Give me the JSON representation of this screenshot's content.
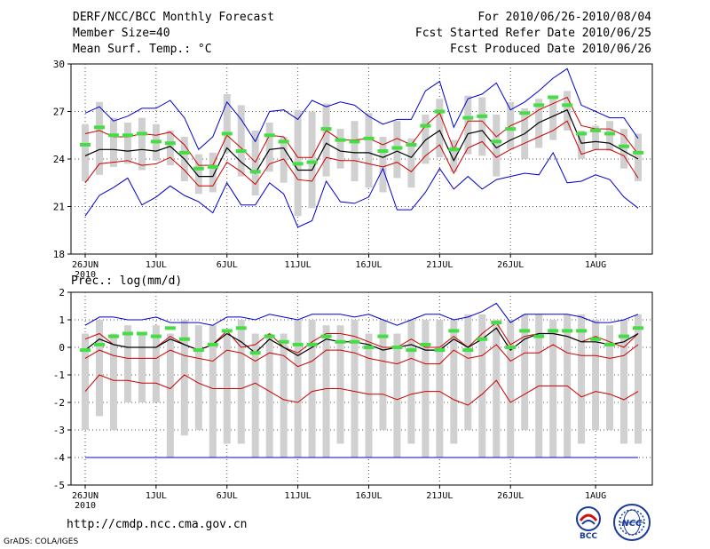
{
  "header": {
    "left_lines": [
      "DERF/NCC/BCC Monthly Forecast",
      "Member Size=40",
      "Mean Surf. Temp.: °C"
    ],
    "right_lines": [
      "For 2010/06/26-2010/08/04",
      "Fcst Started Refer Date 2010/06/25",
      "Fcst Produced Date 2010/06/26"
    ]
  },
  "footer": {
    "url": "http://cmdp.ncc.cma.gov.cn",
    "grads": "GrADS: COLA/IGES"
  },
  "logos": {
    "bcc": "BCC",
    "ncc": "NCC"
  },
  "colors": {
    "max": "#0000cc",
    "std": "#cc0000",
    "mean": "#000000",
    "median": "#44dd44",
    "box": "#d0d0d0"
  },
  "chart_data": [
    {
      "type": "box-line",
      "title": "Mean Surf. Temp.: °C",
      "x_days": 40,
      "xticks": [
        {
          "day": 0,
          "label": "26JUN"
        },
        {
          "day": 5,
          "label": "1JUL"
        },
        {
          "day": 10,
          "label": "6JUL"
        },
        {
          "day": 15,
          "label": "11JUL"
        },
        {
          "day": 20,
          "label": "16JUL"
        },
        {
          "day": 25,
          "label": "21JUL"
        },
        {
          "day": 30,
          "label": "26JUL"
        },
        {
          "day": 36,
          "label": "1AUG"
        }
      ],
      "year_label": "2010",
      "ylim": [
        18,
        30
      ],
      "yticks": [
        18,
        21,
        24,
        27,
        30
      ],
      "series": {
        "max": [
          26.9,
          27.3,
          26.4,
          26.7,
          27.2,
          27.2,
          27.7,
          26.6,
          24.6,
          25.4,
          27.6,
          26.5,
          25.1,
          27,
          27.1,
          26.5,
          27.7,
          27.3,
          27.6,
          27.4,
          26.7,
          26.2,
          26.5,
          26.5,
          28.3,
          28.9,
          26,
          27.8,
          28.1,
          28.8,
          27.1,
          27.6,
          28.3,
          29.1,
          29.7,
          27.4,
          27,
          26.6,
          26.6,
          25.3
        ],
        "plus_std": [
          25.6,
          25.8,
          25.4,
          25.4,
          25.6,
          25.5,
          25.7,
          24.9,
          23.6,
          23.6,
          25.5,
          24.7,
          23.8,
          25.5,
          25.4,
          24.1,
          24.1,
          25.8,
          25.2,
          25.2,
          25.3,
          24.9,
          25.3,
          24.9,
          26.1,
          26.9,
          24.6,
          26.4,
          26.4,
          25.4,
          26.1,
          26.5,
          27.1,
          27.5,
          27.9,
          26.1,
          25.9,
          25.9,
          25.5,
          24.3
        ],
        "mean": [
          24.2,
          24.6,
          24.6,
          24.5,
          24.6,
          24.5,
          24.8,
          24,
          22.9,
          22.9,
          24.7,
          23.8,
          23.1,
          24.6,
          24.7,
          23.3,
          23.3,
          25,
          24.5,
          24.4,
          24.4,
          24.1,
          24.5,
          24.1,
          25.2,
          25.8,
          23.9,
          25.6,
          25.8,
          24.7,
          25.2,
          25.6,
          26.3,
          26.7,
          27.1,
          25,
          25.1,
          25,
          24.5,
          24
        ],
        "minus_std": [
          22.5,
          23.7,
          23.8,
          23.9,
          23.6,
          23.7,
          24.1,
          23.3,
          22.3,
          22.3,
          23.8,
          23.2,
          22.4,
          23.7,
          24,
          22.7,
          22.6,
          24.1,
          23.9,
          23.9,
          23.7,
          23.5,
          23.8,
          23.2,
          24.2,
          24.9,
          23.1,
          24.7,
          25.1,
          24.1,
          24.6,
          25,
          25.4,
          25.8,
          26.4,
          24.3,
          24.6,
          24.6,
          24.2,
          22.8
        ],
        "min": [
          20.4,
          21.7,
          22.2,
          22.8,
          21.1,
          21.6,
          22.3,
          21.7,
          21.3,
          20.6,
          22.5,
          21.1,
          21.1,
          22.5,
          21.8,
          19.7,
          20.1,
          22.6,
          21.3,
          21.2,
          21.6,
          23.4,
          20.8,
          20.8,
          21.9,
          23.4,
          22.1,
          22.9,
          22.1,
          22.7,
          22.9,
          23.1,
          23,
          24.4,
          22.5,
          22.6,
          23,
          22.7,
          21.6,
          20.9
        ],
        "median": [
          24.9,
          26,
          25.5,
          25.5,
          25.6,
          25.1,
          25,
          24.4,
          23.4,
          23.5,
          25.6,
          24.5,
          23.2,
          25.5,
          25.1,
          23.7,
          23.8,
          25.9,
          25.2,
          25.1,
          25.3,
          24.5,
          24.7,
          24.9,
          26.1,
          27,
          24.6,
          26.6,
          26.7,
          25.1,
          25.9,
          26.9,
          27.4,
          27.9,
          27.4,
          25.6,
          25.8,
          25.6,
          24.8,
          24.4
        ],
        "box_low": [
          22.6,
          23,
          23.5,
          23.7,
          23.3,
          23.9,
          23.6,
          22.6,
          21.8,
          21.9,
          24.4,
          22.9,
          21.7,
          23.2,
          22.5,
          20.4,
          20.9,
          22.9,
          23.4,
          22.6,
          22.2,
          21.9,
          22.8,
          22.2,
          23.7,
          24.1,
          23.2,
          24.3,
          24.2,
          22.9,
          24.6,
          24,
          24.7,
          25.2,
          25.8,
          24,
          24.6,
          24.5,
          23.4,
          22.6
        ],
        "box_high": [
          26.2,
          27.6,
          26.6,
          26.3,
          26.6,
          26.2,
          25.8,
          25.4,
          24.3,
          24.4,
          28.1,
          27.4,
          25.8,
          26.3,
          25.4,
          27.1,
          27,
          27.5,
          25.9,
          26.4,
          26.9,
          25.4,
          26.4,
          25.3,
          26.8,
          27.8,
          25.2,
          28,
          27.9,
          26.8,
          27.6,
          27.2,
          27.8,
          27.8,
          28.3,
          25.8,
          26.1,
          26.4,
          25.9,
          25.6
        ]
      }
    },
    {
      "type": "box-line",
      "title": "Prec.: log(mm/d)",
      "x_days": 40,
      "xticks": [
        {
          "day": 0,
          "label": "26JUN"
        },
        {
          "day": 5,
          "label": "1JUL"
        },
        {
          "day": 10,
          "label": "6JUL"
        },
        {
          "day": 15,
          "label": "11JUL"
        },
        {
          "day": 20,
          "label": "16JUL"
        },
        {
          "day": 25,
          "label": "21JUL"
        },
        {
          "day": 30,
          "label": "26JUL"
        },
        {
          "day": 36,
          "label": "1AUG"
        }
      ],
      "year_label": "2010",
      "ylim": [
        -5,
        2
      ],
      "yticks": [
        -5,
        -4,
        -3,
        -2,
        -1,
        0,
        1,
        2
      ],
      "series": {
        "max": [
          0.8,
          1.1,
          1.1,
          1,
          1,
          1.1,
          0.9,
          0.9,
          0.9,
          0.8,
          1.1,
          1.1,
          1,
          1.2,
          1.1,
          1,
          1.2,
          1.2,
          1.2,
          1.1,
          1.2,
          1,
          0.8,
          1,
          1.2,
          1.2,
          1,
          1.1,
          1.3,
          1.6,
          0.9,
          1.2,
          1.2,
          1.2,
          1.2,
          1.1,
          0.9,
          0.9,
          1,
          1.2
        ],
        "plus_std": [
          0.3,
          0.5,
          0.1,
          0,
          0,
          0,
          0.4,
          0.1,
          -0.1,
          0.1,
          0.6,
          0,
          0.1,
          0.5,
          0,
          -0.2,
          0.2,
          0.5,
          0.5,
          0.4,
          0.2,
          0,
          0,
          0.3,
          0,
          0,
          0.4,
          0,
          0.5,
          0.9,
          0.1,
          0.4,
          0.5,
          0.5,
          0.4,
          0.2,
          0.4,
          0.2,
          0,
          0.5
        ],
        "mean": [
          -0.1,
          0.3,
          0.1,
          0,
          0,
          0,
          0.3,
          0.1,
          -0.1,
          0.1,
          0.5,
          0.2,
          -0.2,
          0.3,
          0,
          -0.3,
          0,
          0.3,
          0.2,
          0.2,
          0.1,
          -0.1,
          0,
          0.1,
          -0.1,
          -0.1,
          0.3,
          0,
          0.3,
          0.7,
          -0.1,
          0.3,
          0.5,
          0.5,
          0.4,
          0.2,
          0.2,
          0.1,
          0.2,
          0.5
        ],
        "minus_std": [
          -0.4,
          -0.1,
          -0.3,
          -0.4,
          -0.4,
          -0.4,
          -0.1,
          -0.3,
          -0.4,
          -0.5,
          -0.1,
          -0.2,
          -0.5,
          -0.2,
          -0.3,
          -0.7,
          -0.5,
          -0.1,
          -0.1,
          -0.2,
          -0.4,
          -0.5,
          -0.6,
          -0.4,
          -0.6,
          -0.6,
          -0.1,
          -0.4,
          -0.3,
          0.1,
          -0.5,
          -0.2,
          -0.2,
          0.1,
          -0.2,
          -0.3,
          -0.3,
          -0.4,
          -0.3,
          0.1
        ],
        "min": [
          -1.6,
          -1,
          -1.2,
          -1.2,
          -1.3,
          -1.3,
          -1.5,
          -1,
          -1.3,
          -1.5,
          -1.5,
          -1.5,
          -1.3,
          -1.6,
          -1.9,
          -2,
          -1.6,
          -1.5,
          -1.5,
          -1.6,
          -1.7,
          -1.7,
          -1.9,
          -1.7,
          -1.6,
          -1.6,
          -1.9,
          -2.1,
          -1.7,
          -1.2,
          -2,
          -1.7,
          -1.4,
          -1.4,
          -1.4,
          -1.8,
          -1.6,
          -1.7,
          -1.9,
          -1.6
        ],
        "lowest": [
          -4,
          -4,
          -4,
          -4,
          -4,
          -4,
          -4,
          -4,
          -4,
          -4,
          -4,
          -4,
          -4,
          -4,
          -4,
          -4,
          -4,
          -4,
          -4,
          -4,
          -4,
          -4,
          -4,
          -4,
          -4,
          -4,
          -4,
          -4,
          -4,
          -4,
          -4,
          -4,
          -4,
          -4,
          -4,
          -4,
          -4,
          -4,
          -4,
          -4
        ],
        "median": [
          -0.1,
          0.1,
          0.4,
          0.5,
          0.5,
          0.4,
          0.7,
          0.3,
          -0.1,
          0.1,
          0.6,
          0.7,
          -0.2,
          0.4,
          0.2,
          0.1,
          0.1,
          0.4,
          0.2,
          0.2,
          0,
          0.4,
          0,
          -0.1,
          0.1,
          -0.1,
          0.6,
          -0.1,
          0.3,
          0.9,
          0,
          0.6,
          0.4,
          0.6,
          0.6,
          0.6,
          0.3,
          0.1,
          0.4,
          0.7
        ],
        "box_low": [
          -3,
          -2.5,
          -3,
          -2,
          -2,
          -2,
          -4,
          -3.2,
          -3,
          -4,
          -3.5,
          -3.5,
          -4,
          -4,
          -4,
          -4,
          -4,
          -4,
          -3.5,
          -4,
          -4,
          -3,
          -4,
          -3.5,
          -4,
          -4,
          -3.5,
          -3,
          -4,
          -4,
          -4,
          -3,
          -4,
          -4,
          -4,
          -3.5,
          -3,
          -3,
          -3.5,
          -3.5
        ],
        "box_high": [
          0.5,
          1,
          0.5,
          0.8,
          0.5,
          0.8,
          0.5,
          1,
          0.8,
          0.8,
          0.5,
          1,
          0.5,
          0.5,
          0.5,
          1,
          1,
          0.8,
          0.8,
          1,
          0.5,
          1,
          0.5,
          1,
          1,
          1,
          1,
          1.2,
          1.2,
          1,
          1,
          1.2,
          1.2,
          1,
          1.2,
          1.2,
          1,
          0.8,
          1,
          1.2
        ]
      }
    }
  ]
}
